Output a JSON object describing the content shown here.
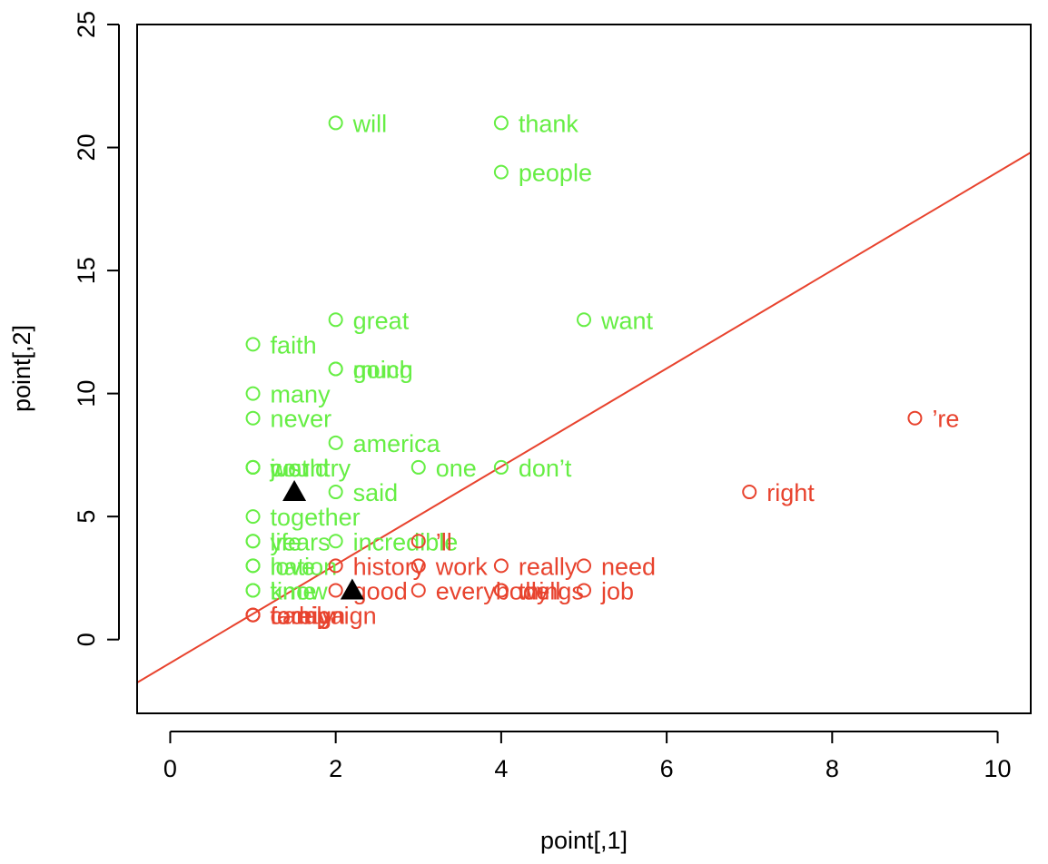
{
  "chart_data": {
    "type": "scatter",
    "title": "",
    "xlabel": "point[,1]",
    "ylabel": "point[,2]",
    "xlim": [
      -0.4,
      10.4
    ],
    "ylim": [
      -3,
      25
    ],
    "x_ticks": [
      0,
      2,
      4,
      6,
      8,
      10
    ],
    "y_ticks": [
      0,
      5,
      10,
      15,
      20,
      25
    ],
    "x_tick_labels": [
      "0",
      "2",
      "4",
      "6",
      "8",
      "10"
    ],
    "y_tick_labels": [
      "0",
      "5",
      "10",
      "15",
      "20",
      "25"
    ],
    "colors": {
      "green": "#66ee44",
      "red": "#e8432e",
      "marker": "#000000"
    },
    "series": [
      {
        "name": "green",
        "color": "#66ee44",
        "points": [
          {
            "x": 2,
            "y": 21,
            "label": "will"
          },
          {
            "x": 4,
            "y": 21,
            "label": "thank"
          },
          {
            "x": 4,
            "y": 19,
            "label": "people"
          },
          {
            "x": 2,
            "y": 13,
            "label": "great"
          },
          {
            "x": 5,
            "y": 13,
            "label": "want"
          },
          {
            "x": 1,
            "y": 12,
            "label": "faith"
          },
          {
            "x": 2,
            "y": 11,
            "label": "going"
          },
          {
            "x": 2,
            "y": 11,
            "label": "much"
          },
          {
            "x": 1,
            "y": 10,
            "label": "many"
          },
          {
            "x": 1,
            "y": 9,
            "label": "never"
          },
          {
            "x": 2,
            "y": 8,
            "label": "america"
          },
          {
            "x": 1,
            "y": 7,
            "label": "just"
          },
          {
            "x": 1,
            "y": 7,
            "label": "world"
          },
          {
            "x": 1,
            "y": 7,
            "label": "country"
          },
          {
            "x": 3,
            "y": 7,
            "label": "one"
          },
          {
            "x": 4,
            "y": 7,
            "label": "don’t"
          },
          {
            "x": 2,
            "y": 6,
            "label": "said"
          },
          {
            "x": 1,
            "y": 5,
            "label": "together"
          },
          {
            "x": 1,
            "y": 4,
            "label": "life"
          },
          {
            "x": 1,
            "y": 4,
            "label": "years"
          },
          {
            "x": 2,
            "y": 4,
            "label": "incredible"
          },
          {
            "x": 1,
            "y": 3,
            "label": "love"
          },
          {
            "x": 1,
            "y": 3,
            "label": "nation"
          },
          {
            "x": 1,
            "y": 2,
            "label": "time"
          },
          {
            "x": 1,
            "y": 2,
            "label": "know"
          }
        ]
      },
      {
        "name": "red",
        "color": "#e8432e",
        "points": [
          {
            "x": 9,
            "y": 9,
            "label": "’re"
          },
          {
            "x": 7,
            "y": 6,
            "label": "right"
          },
          {
            "x": 3,
            "y": 4,
            "label": "’ll"
          },
          {
            "x": 2,
            "y": 3,
            "label": "history"
          },
          {
            "x": 3,
            "y": 3,
            "label": "work"
          },
          {
            "x": 4,
            "y": 3,
            "label": "really"
          },
          {
            "x": 5,
            "y": 3,
            "label": "need"
          },
          {
            "x": 2,
            "y": 2,
            "label": "good"
          },
          {
            "x": 3,
            "y": 2,
            "label": "everybody"
          },
          {
            "x": 4,
            "y": 2,
            "label": "things"
          },
          {
            "x": 4,
            "y": 2,
            "label": "well"
          },
          {
            "x": 5,
            "y": 2,
            "label": "job"
          },
          {
            "x": 1,
            "y": 1,
            "label": "foreign"
          },
          {
            "x": 1,
            "y": 1,
            "label": "campaign"
          },
          {
            "x": 1,
            "y": 1,
            "label": "family"
          },
          {
            "x": 1,
            "y": 1,
            "label": "today"
          }
        ]
      }
    ],
    "centroids": [
      {
        "x": 1.5,
        "y": 6
      },
      {
        "x": 2.2,
        "y": 2
      }
    ],
    "line": {
      "color": "#e8432e",
      "x": [
        -0.4,
        10.4
      ],
      "y": [
        -1.75,
        19.8
      ]
    }
  }
}
